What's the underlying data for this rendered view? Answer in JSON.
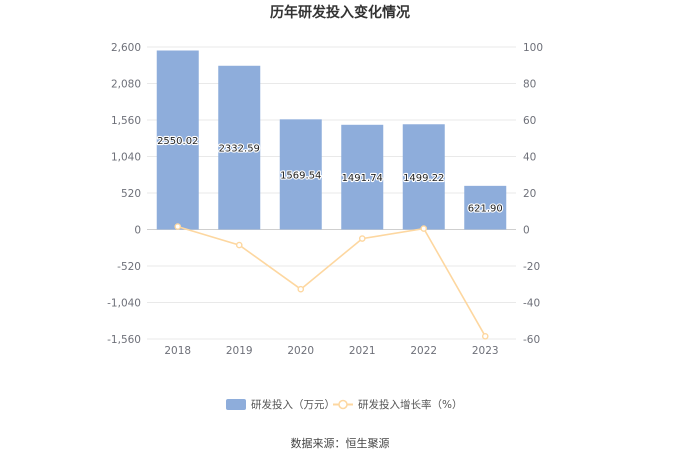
{
  "title": "历年研发投入变化情况",
  "source": "数据来源：恒生聚源",
  "colors": {
    "bar": "#8eaddb",
    "line": "#fdd7a0",
    "grid": "#e9e9e9",
    "zero_line": "#cfcfcf",
    "point_fill": "#ffffff"
  },
  "chart_data": {
    "type": "bar",
    "categories": [
      "2018",
      "2019",
      "2020",
      "2021",
      "2022",
      "2023"
    ],
    "series": [
      {
        "name": "研发投入（万元）",
        "type": "bar",
        "axis": "left",
        "values": [
          2550.02,
          2332.59,
          1569.54,
          1491.74,
          1499.22,
          621.9
        ],
        "data_labels": [
          "2550.02",
          "2332.59",
          "1569.54",
          "1491.74",
          "1499.22",
          "621.90"
        ]
      },
      {
        "name": "研发投入增长率（%）",
        "type": "line",
        "axis": "right",
        "values": [
          1.6,
          -8.53,
          -32.71,
          -4.96,
          0.5,
          -58.52
        ]
      }
    ],
    "left_axis": {
      "ticks": [
        "2,600",
        "2,080",
        "1,560",
        "1,040",
        "520",
        "0",
        "-520",
        "-1,040",
        "-1,560"
      ],
      "ylim": [
        -1560,
        2600
      ]
    },
    "right_axis": {
      "ticks": [
        "100",
        "80",
        "60",
        "40",
        "20",
        "0",
        "-20",
        "-40",
        "-60"
      ],
      "ylim": [
        -60,
        100
      ]
    },
    "grid": true,
    "legend_position": "bottom"
  }
}
